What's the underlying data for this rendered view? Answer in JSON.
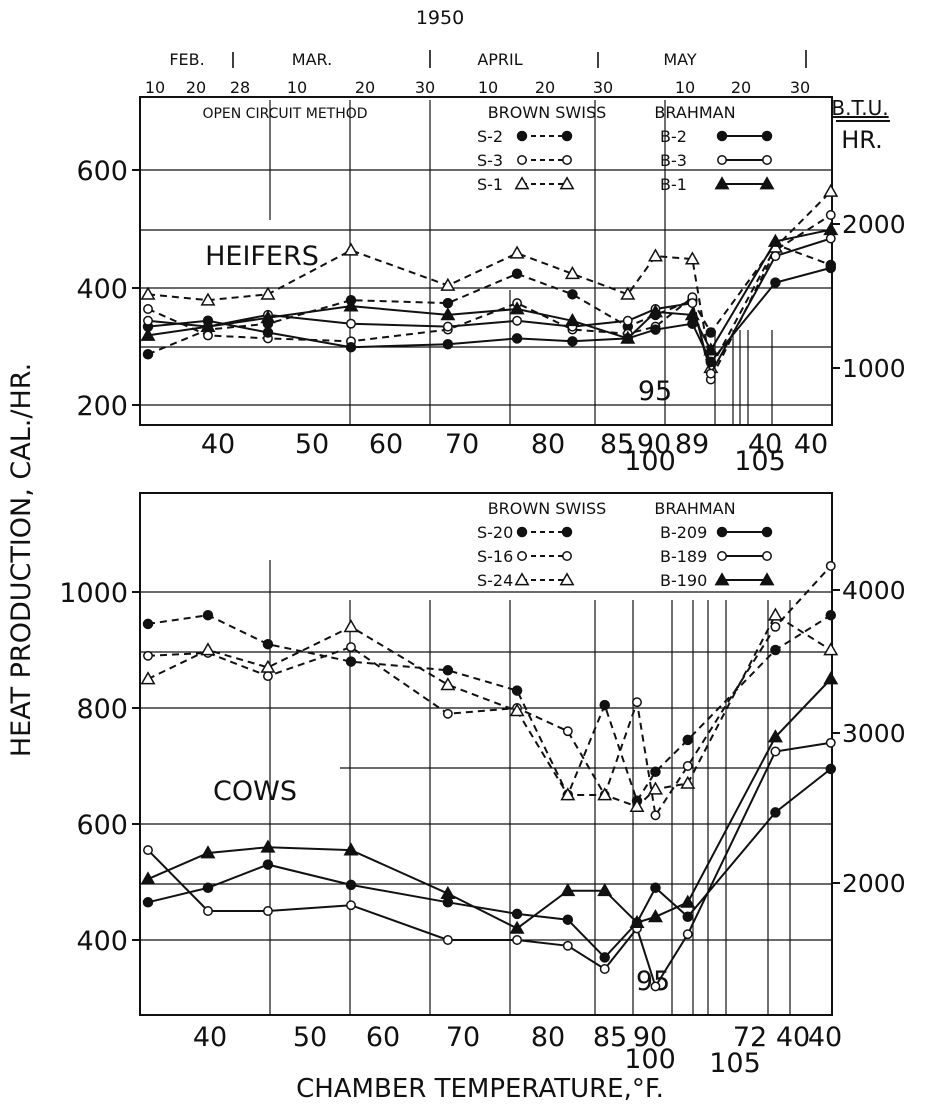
{
  "figure": {
    "year": "1950",
    "ylabel": "HEAT PRODUCTION, CAL./HR.",
    "xlabel": "CHAMBER TEMPERATURE,°F.",
    "months": [
      "FEB.",
      "MAR.",
      "APRIL",
      "MAY"
    ],
    "days": [
      "10",
      "20",
      "28",
      "10",
      "20",
      "30",
      "10",
      "20",
      "30",
      "10",
      "20",
      "30"
    ],
    "method": "OPEN CIRCUIT METHOD",
    "btu_label_top": "B.T.U.",
    "btu_label_bottom": "HR.",
    "colors": {
      "ink": "#111111",
      "background": "#ffffff"
    }
  },
  "chart_data": [
    {
      "type": "line",
      "title": "HEIFERS",
      "ylabel": "HEAT PRODUCTION, CAL./HR.",
      "y2label": "B.T.U./HR.",
      "ylim": [
        190,
        720
      ],
      "y_ticks": [
        "200",
        "400",
        "600"
      ],
      "y2_ticks": [
        "1000",
        "2000"
      ],
      "x_categories": [
        "40",
        "50",
        "60",
        "70",
        "80",
        "85",
        "90",
        "89",
        "95",
        "100",
        "105",
        "40",
        "40"
      ],
      "x_tick_labels": [
        "40",
        "50",
        "60",
        "70",
        "80",
        "85",
        "90",
        "89",
        "40",
        "40"
      ],
      "annotations": [
        "95",
        "100",
        "105"
      ],
      "legend_groups": [
        "BROWN SWISS",
        "BRAHMAN"
      ],
      "grid": true,
      "series": [
        {
          "name": "S-2",
          "style": "dashed-filled-circle",
          "x": [
            40,
            53,
            66,
            84,
            105,
            120,
            132,
            144,
            150,
            158,
            162,
            176,
            188
          ],
          "values": [
            283,
            325,
            335,
            375,
            370,
            420,
            385,
            330,
            350,
            375,
            320,
            470,
            435
          ]
        },
        {
          "name": "S-3",
          "style": "dashed-open-circle",
          "x": [
            40,
            53,
            66,
            84,
            105,
            120,
            132,
            144,
            150,
            158,
            162,
            176,
            188
          ],
          "values": [
            360,
            315,
            310,
            305,
            325,
            370,
            325,
            318,
            330,
            380,
            240,
            460,
            520
          ]
        },
        {
          "name": "S-1",
          "style": "dashed-open-triangle",
          "x": [
            40,
            53,
            66,
            84,
            105,
            120,
            132,
            144,
            150,
            158,
            162,
            176,
            188
          ],
          "values": [
            385,
            375,
            385,
            460,
            400,
            455,
            420,
            385,
            450,
            445,
            260,
            465,
            560
          ]
        },
        {
          "name": "B-2",
          "style": "solid-filled-circle",
          "x": [
            40,
            53,
            66,
            84,
            105,
            120,
            132,
            144,
            150,
            158,
            162,
            176,
            188
          ],
          "values": [
            330,
            340,
            320,
            295,
            300,
            310,
            305,
            310,
            325,
            335,
            270,
            405,
            430
          ]
        },
        {
          "name": "B-3",
          "style": "solid-open-circle",
          "x": [
            40,
            53,
            66,
            84,
            105,
            120,
            132,
            144,
            150,
            158,
            162,
            176,
            188
          ],
          "values": [
            340,
            330,
            350,
            335,
            330,
            340,
            330,
            340,
            360,
            370,
            250,
            450,
            480
          ]
        },
        {
          "name": "B-1",
          "style": "solid-filled-triangle",
          "x": [
            40,
            53,
            66,
            84,
            105,
            120,
            132,
            144,
            150,
            158,
            162,
            176,
            188
          ],
          "values": [
            315,
            330,
            345,
            365,
            350,
            360,
            340,
            310,
            355,
            350,
            290,
            475,
            495
          ]
        }
      ]
    },
    {
      "type": "line",
      "title": "COWS",
      "ylabel": "HEAT PRODUCTION, CAL./HR.",
      "y2label": "B.T.U./HR.",
      "xlabel": "CHAMBER TEMPERATURE,°F.",
      "ylim": [
        300,
        1170
      ],
      "y_ticks": [
        "400",
        "600",
        "800",
        "1000"
      ],
      "y2_ticks": [
        "2000",
        "3000",
        "4000"
      ],
      "x_categories": [
        "40",
        "50",
        "60",
        "70",
        "80",
        "85",
        "90",
        "95",
        "100",
        "105",
        "72",
        "40",
        "40"
      ],
      "x_tick_labels": [
        "40",
        "50",
        "60",
        "70",
        "80",
        "85",
        "90",
        "72",
        "40",
        "40"
      ],
      "annotations": [
        "95",
        "100",
        "105"
      ],
      "legend_groups": [
        "BROWN SWISS",
        "BRAHMAN"
      ],
      "grid": true,
      "series": [
        {
          "name": "S-20",
          "style": "dashed-filled-circle",
          "x": [
            40,
            53,
            66,
            84,
            105,
            120,
            131,
            139,
            146,
            150,
            157,
            176,
            188
          ],
          "values": [
            945,
            960,
            910,
            880,
            865,
            830,
            650,
            805,
            640,
            690,
            745,
            900,
            960
          ]
        },
        {
          "name": "S-16",
          "style": "dashed-open-circle",
          "x": [
            40,
            53,
            66,
            84,
            105,
            120,
            131,
            139,
            146,
            150,
            157,
            176,
            188
          ],
          "values": [
            890,
            895,
            855,
            905,
            790,
            800,
            760,
            650,
            810,
            615,
            700,
            940,
            1045
          ]
        },
        {
          "name": "S-24",
          "style": "dashed-open-triangle",
          "x": [
            40,
            53,
            66,
            84,
            105,
            120,
            131,
            139,
            146,
            150,
            157,
            176,
            188
          ],
          "values": [
            850,
            900,
            870,
            940,
            840,
            795,
            650,
            650,
            630,
            660,
            670,
            960,
            900
          ]
        },
        {
          "name": "B-209",
          "style": "solid-filled-circle",
          "x": [
            40,
            53,
            66,
            84,
            105,
            120,
            131,
            139,
            146,
            150,
            157,
            176,
            188
          ],
          "values": [
            465,
            490,
            530,
            495,
            465,
            445,
            435,
            370,
            430,
            490,
            440,
            620,
            695
          ]
        },
        {
          "name": "B-189",
          "style": "solid-open-circle",
          "x": [
            40,
            53,
            66,
            84,
            105,
            120,
            131,
            139,
            146,
            150,
            157,
            176,
            188
          ],
          "values": [
            555,
            450,
            450,
            460,
            400,
            400,
            390,
            350,
            420,
            320,
            410,
            725,
            740
          ]
        },
        {
          "name": "B-190",
          "style": "solid-filled-triangle",
          "x": [
            40,
            53,
            66,
            84,
            105,
            120,
            131,
            139,
            146,
            150,
            157,
            176,
            188
          ],
          "values": [
            505,
            550,
            560,
            555,
            480,
            420,
            485,
            485,
            430,
            440,
            465,
            750,
            850
          ]
        }
      ]
    }
  ]
}
